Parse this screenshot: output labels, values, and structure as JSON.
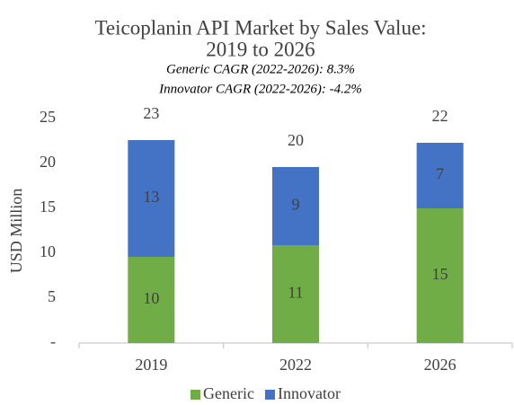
{
  "chart_data": {
    "type": "stacked-bar",
    "title": [
      "Teicoplanin API Market by Sales Value:",
      "2019 to 2026"
    ],
    "subtitle": [
      "Generic CAGR (2022-2026): 8.3%",
      "Innovator CAGR (2022-2026): -4.2%"
    ],
    "y_label": "USD Million",
    "categories": [
      "2019",
      "2022",
      "2026"
    ],
    "series": [
      {
        "name": "Generic",
        "color": "#70ad47",
        "values": [
          9.6,
          10.9,
          15.0
        ],
        "value_labels": [
          "10",
          "11",
          "15"
        ]
      },
      {
        "name": "Innovator",
        "color": "#4472c4",
        "values": [
          13.0,
          8.7,
          7.3
        ],
        "value_labels": [
          "13",
          "9",
          "7"
        ]
      }
    ],
    "total_labels": [
      "23",
      "20",
      "22"
    ],
    "ylim": [
      0,
      25
    ],
    "yticks": [
      {
        "value": 0,
        "label": "-"
      },
      5,
      10,
      15,
      20,
      25
    ],
    "grid": false,
    "legend": "bottom"
  }
}
